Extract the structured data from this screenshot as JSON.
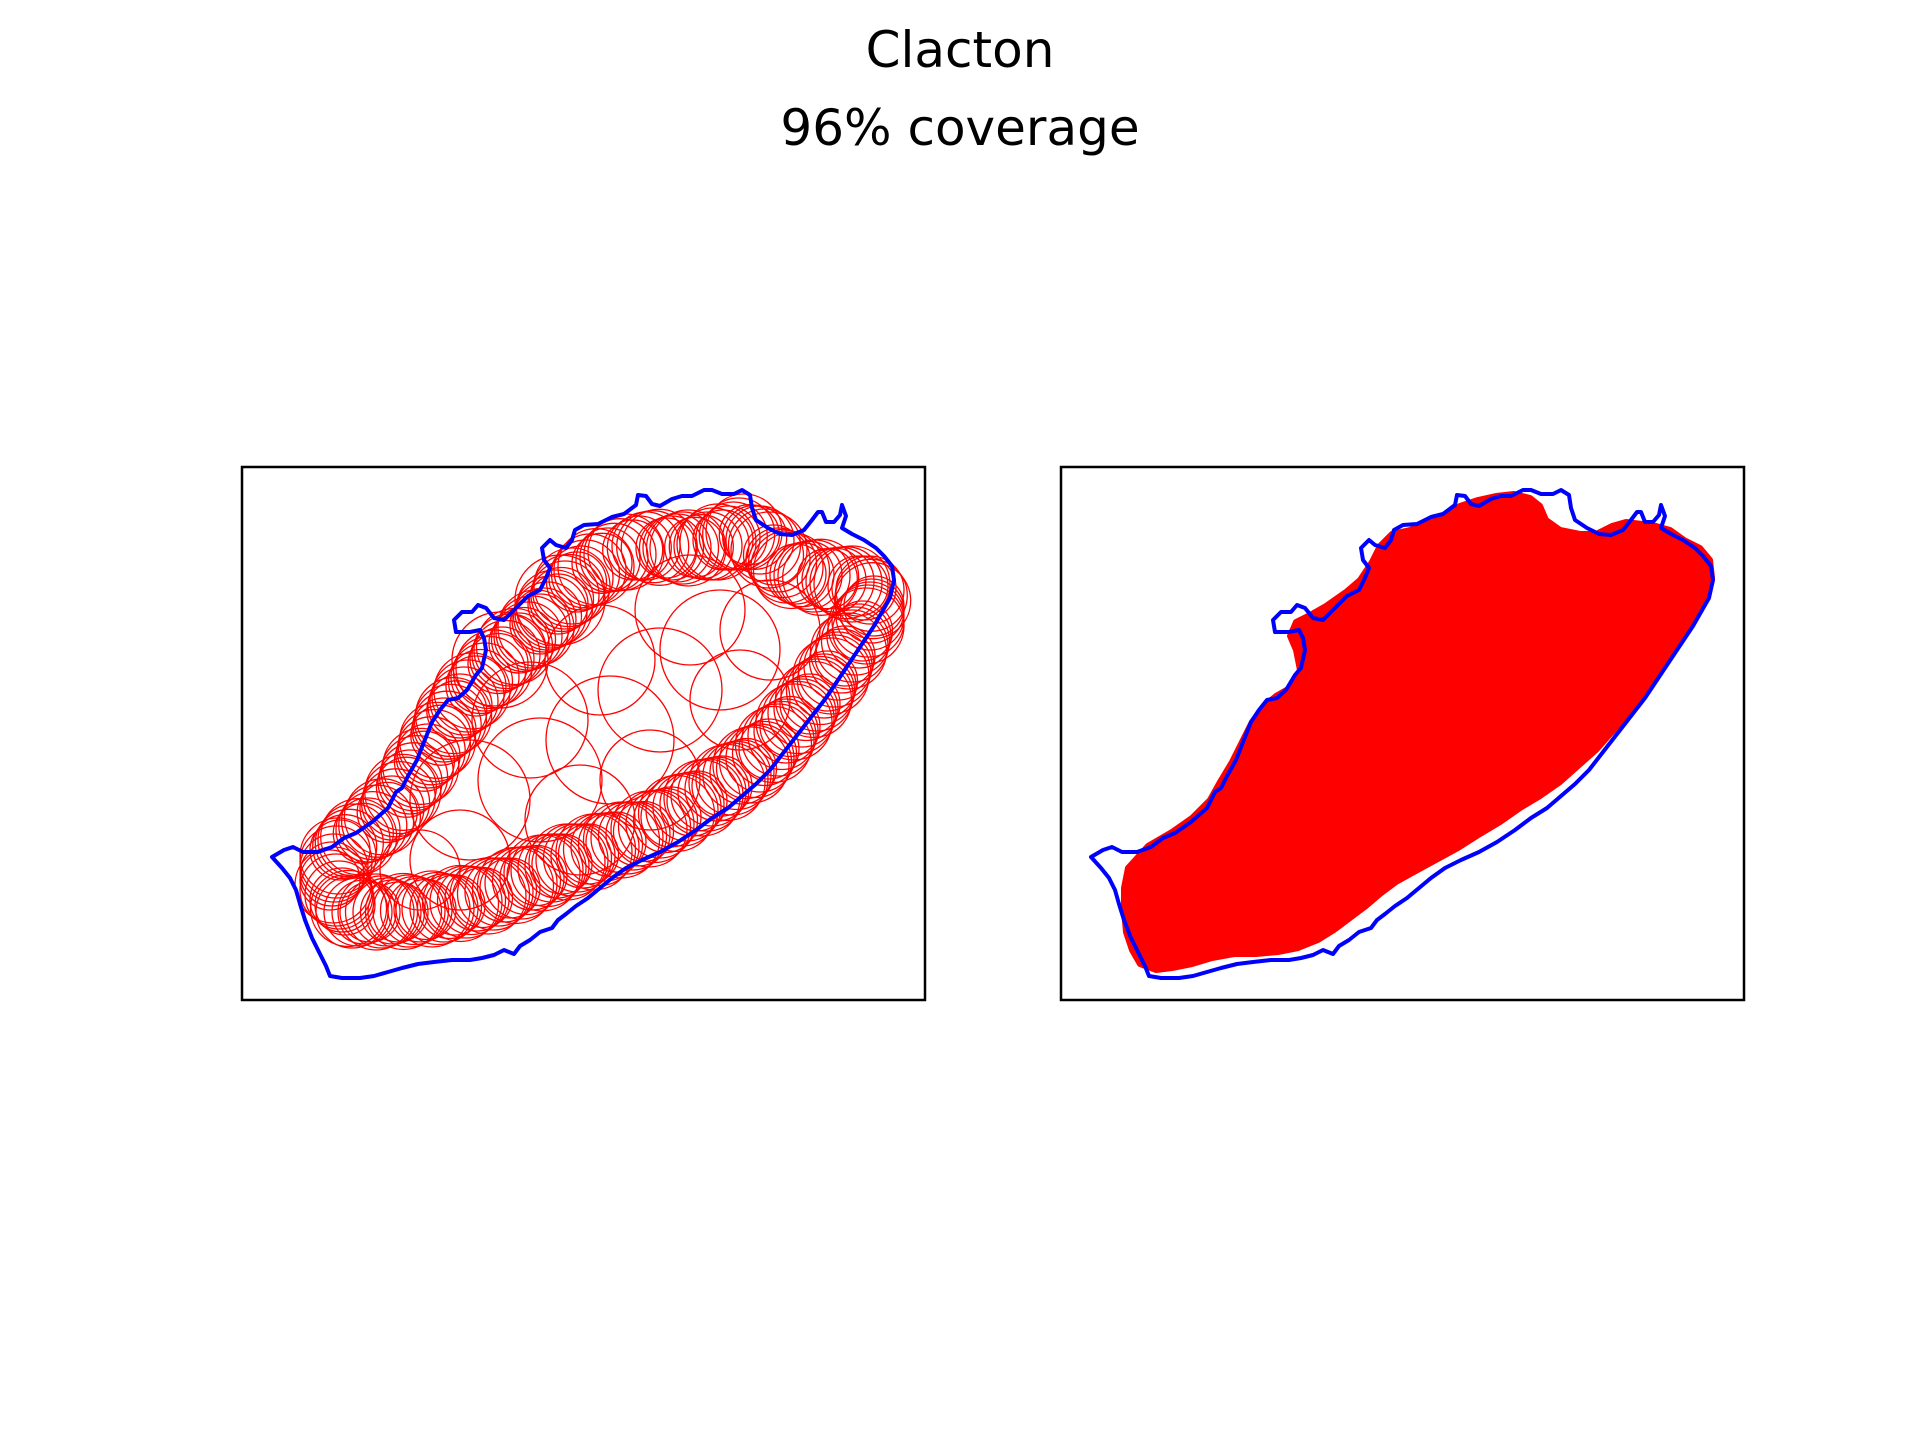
{
  "figure": {
    "title": "Clacton",
    "subtitle": "96% coverage",
    "outline_color": "#0000ff",
    "circle_color": "#ff0000",
    "frame_color": "#000000"
  },
  "panels": [
    {
      "name": "circle-outlines",
      "style": "outline"
    },
    {
      "name": "coverage-fill",
      "style": "filled"
    }
  ]
}
